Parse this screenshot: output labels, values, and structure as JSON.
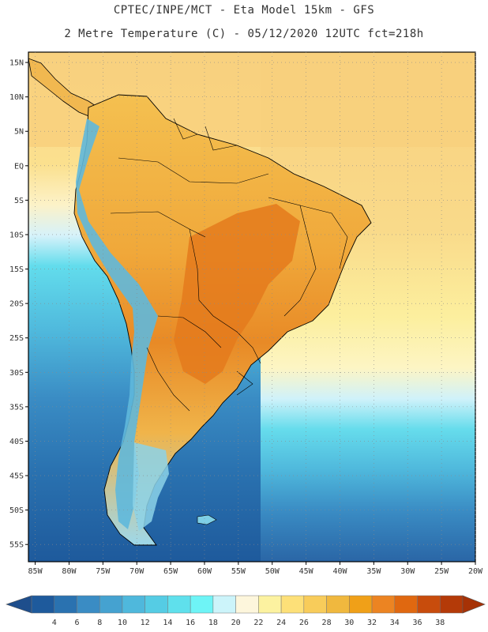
{
  "title": {
    "line1": "CPTEC/INPE/MCT -  Eta Model 15km - GFS",
    "line2": "2 Metre Temperature (C) - 05/12/2020 12UTC fct=218h"
  },
  "axes": {
    "lat_labels": [
      "15N",
      "10N",
      "5N",
      "EQ",
      "5S",
      "10S",
      "15S",
      "20S",
      "25S",
      "30S",
      "35S",
      "40S",
      "45S",
      "50S",
      "55S"
    ],
    "lat_values": [
      15,
      10,
      5,
      0,
      -5,
      -10,
      -15,
      -20,
      -25,
      -30,
      -35,
      -40,
      -45,
      -50,
      -55
    ],
    "lon_labels": [
      "85W",
      "80W",
      "75W",
      "70W",
      "65W",
      "60W",
      "55W",
      "50W",
      "45W",
      "40W",
      "35W",
      "30W",
      "25W",
      "20W"
    ],
    "lon_values": [
      -85,
      -80,
      -75,
      -70,
      -65,
      -60,
      -55,
      -50,
      -45,
      -40,
      -35,
      -30,
      -25,
      -20
    ],
    "lat_range": [
      -57.5,
      16.5
    ],
    "lon_range": [
      -86,
      -20
    ]
  },
  "colorbar": {
    "labels": [
      "4",
      "6",
      "8",
      "10",
      "12",
      "14",
      "16",
      "18",
      "20",
      "22",
      "24",
      "26",
      "28",
      "30",
      "32",
      "34",
      "36",
      "38"
    ],
    "colors": [
      "#1e5a9c",
      "#2a72b0",
      "#3a8cc4",
      "#45a2d0",
      "#4fb8dc",
      "#55cce4",
      "#5fe0ec",
      "#6ef4f6",
      "#ccf4fa",
      "#fdf6dc",
      "#fcf2a0",
      "#fde078",
      "#f8cc5a",
      "#f0b83e",
      "#f0a018",
      "#ec8422",
      "#e06810",
      "#c84c0c",
      "#b43a08"
    ],
    "arrow_left_color": "#1e4e8c",
    "arrow_right_color": "#a63206"
  }
}
